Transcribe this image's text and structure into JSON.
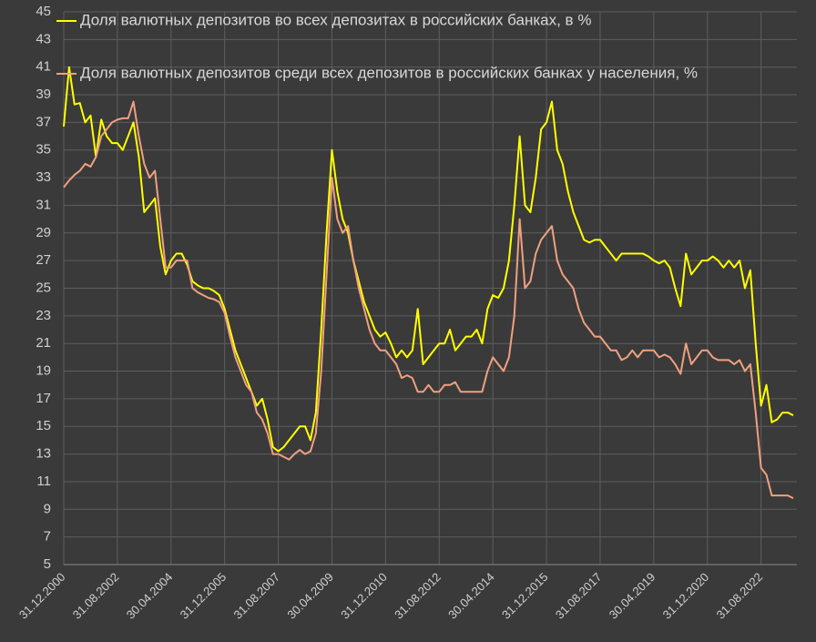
{
  "chart_data": {
    "type": "line",
    "categories": [
      "31.12.2000",
      null,
      null,
      null,
      null,
      null,
      null,
      null,
      null,
      null,
      "31.08.2002",
      null,
      null,
      null,
      null,
      null,
      null,
      null,
      null,
      null,
      "30.04.2004",
      null,
      null,
      null,
      null,
      null,
      null,
      null,
      null,
      null,
      "31.12.2005",
      null,
      null,
      null,
      null,
      null,
      null,
      null,
      null,
      null,
      "31.08.2007",
      null,
      null,
      null,
      null,
      null,
      null,
      null,
      null,
      null,
      "30.04.2009",
      null,
      null,
      null,
      null,
      null,
      null,
      null,
      null,
      null,
      "31.12.2010",
      null,
      null,
      null,
      null,
      null,
      null,
      null,
      null,
      null,
      "31.08.2012",
      null,
      null,
      null,
      null,
      null,
      null,
      null,
      null,
      null,
      "30.04.2014",
      null,
      null,
      null,
      null,
      null,
      null,
      null,
      null,
      null,
      "31.12.2015",
      null,
      null,
      null,
      null,
      null,
      null,
      null,
      null,
      null,
      "31.08.2017",
      null,
      null,
      null,
      null,
      null,
      null,
      null,
      null,
      null,
      "30.04.2019",
      null,
      null,
      null,
      null,
      null,
      null,
      null,
      null,
      null,
      "31.12.2020",
      null,
      null,
      null,
      null,
      null,
      null,
      null,
      null,
      null,
      "31.08.2022",
      null,
      null,
      null,
      null,
      null,
      null
    ],
    "series": [
      {
        "name": "Доля валютных депозитов во всех депозитах в российских банках,  в %",
        "color": "#ffff00",
        "values": [
          36.7,
          41,
          38.3,
          38.4,
          37,
          37.5,
          34.5,
          37.2,
          36,
          35.5,
          35.5,
          35,
          36,
          37,
          34.5,
          30.5,
          31,
          31.5,
          28,
          26,
          27,
          27.5,
          27.5,
          26.7,
          25.5,
          25.2,
          25,
          25,
          24.8,
          24.5,
          23.5,
          22,
          20.5,
          19.5,
          18.5,
          17.5,
          16.5,
          17,
          15.5,
          13.5,
          13.2,
          13.5,
          14,
          14.5,
          15,
          15,
          14,
          16,
          22,
          29,
          35,
          32,
          30,
          29,
          27,
          25.5,
          24,
          23,
          22,
          21.5,
          21.8,
          21,
          20,
          20.5,
          20,
          20.5,
          23.5,
          19.5,
          20,
          20.5,
          21,
          21,
          22,
          20.5,
          21,
          21.5,
          21.5,
          22,
          21,
          23.5,
          24.5,
          24.3,
          25,
          27,
          31,
          36,
          31,
          30.5,
          33,
          36.5,
          37,
          38.5,
          35,
          34,
          32,
          30.5,
          29.5,
          28.5,
          28.3,
          28.5,
          28.5,
          28,
          27.5,
          27,
          27.5,
          27.5,
          27.5,
          27.5,
          27.5,
          27.3,
          27,
          26.8,
          27,
          26.5,
          25,
          23.7,
          27.5,
          26,
          26.5,
          27,
          27,
          27.3,
          27,
          26.5,
          27,
          26.5,
          27,
          25,
          26.3,
          21,
          16.5,
          18,
          15.3,
          15.5,
          16,
          16,
          15.8
        ]
      },
      {
        "name": "Доля валютных депозитов среди всех депозитов в российских банках у населения, %",
        "color": "#f0a080",
        "values": [
          32.3,
          32.8,
          33.2,
          33.5,
          34,
          33.8,
          34.5,
          36,
          36.5,
          37,
          37.2,
          37.3,
          37.3,
          38.5,
          36,
          34,
          33,
          33.5,
          30,
          26.5,
          26.5,
          27,
          27,
          27,
          25,
          24.7,
          24.5,
          24.3,
          24.2,
          24,
          23.2,
          21.5,
          20,
          19,
          18,
          17.5,
          16,
          15.5,
          14.5,
          13,
          13,
          12.8,
          12.6,
          13,
          13.3,
          13,
          13.2,
          14.5,
          19,
          26,
          33,
          30,
          29,
          29.5,
          27,
          25,
          23.5,
          22,
          21,
          20.5,
          20.5,
          20,
          19.5,
          18.5,
          18.7,
          18.5,
          17.5,
          17.5,
          18,
          17.5,
          17.5,
          18,
          18,
          18.2,
          17.5,
          17.5,
          17.5,
          17.5,
          17.5,
          19,
          20,
          19.5,
          19,
          20,
          23,
          30,
          25,
          25.5,
          27.5,
          28.5,
          29,
          29.5,
          27,
          26,
          25.5,
          25,
          23.5,
          22.5,
          22,
          21.5,
          21.5,
          21,
          20.5,
          20.5,
          19.8,
          20,
          20.5,
          20,
          20.5,
          20.5,
          20.5,
          20,
          20.2,
          20,
          19.5,
          18.8,
          21,
          19.5,
          20,
          20.5,
          20.5,
          20,
          19.8,
          19.8,
          19.8,
          19.5,
          19.8,
          19,
          19.5,
          16,
          12,
          11.5,
          10,
          10,
          10,
          10,
          9.8
        ]
      }
    ],
    "ylim": [
      5,
      45
    ],
    "yticks": [
      5,
      7,
      9,
      11,
      13,
      15,
      17,
      19,
      21,
      23,
      25,
      27,
      29,
      31,
      33,
      35,
      37,
      39,
      41,
      43,
      45
    ],
    "grid": true
  }
}
